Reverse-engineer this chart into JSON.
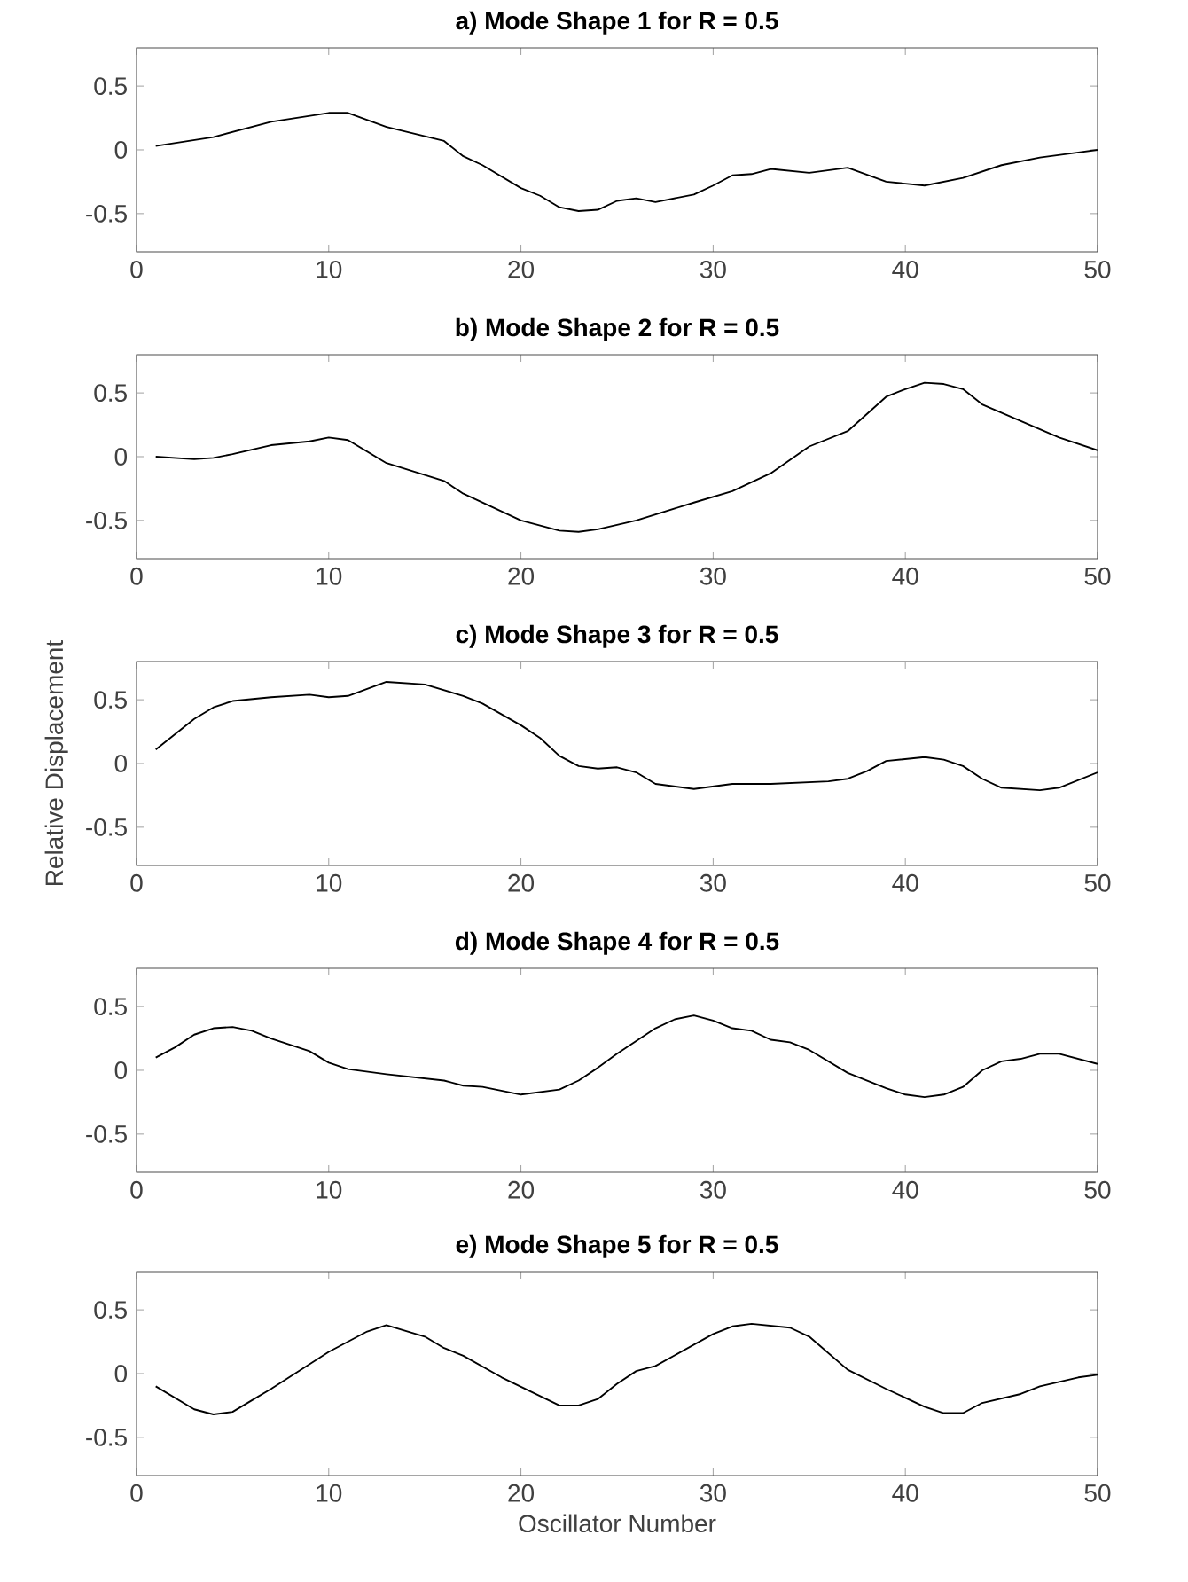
{
  "chart_data": [
    {
      "type": "line",
      "title": "a) Mode Shape 1 for R = 0.5",
      "xlim": [
        0,
        50
      ],
      "ylim": [
        -0.8,
        0.8
      ],
      "xticks": [
        0,
        10,
        20,
        30,
        40,
        50
      ],
      "yticks": [
        -0.5,
        0,
        0.5
      ],
      "x": [
        1,
        4,
        7,
        10,
        11,
        13,
        16,
        17,
        18,
        20,
        21,
        22,
        23,
        24,
        25,
        26,
        27,
        29,
        30,
        31,
        32,
        33,
        35,
        37,
        39,
        41,
        43,
        45,
        47,
        49,
        50
      ],
      "series": [
        {
          "color": "#000000",
          "values": [
            0.03,
            0.1,
            0.22,
            0.29,
            0.29,
            0.18,
            0.07,
            -0.05,
            -0.12,
            -0.3,
            -0.36,
            -0.45,
            -0.48,
            -0.47,
            -0.4,
            -0.38,
            -0.41,
            -0.35,
            -0.28,
            -0.2,
            -0.19,
            -0.15,
            -0.18,
            -0.14,
            -0.25,
            -0.28,
            -0.22,
            -0.12,
            -0.06,
            -0.02,
            0.0
          ]
        }
      ]
    },
    {
      "type": "line",
      "title": "b) Mode Shape 2 for R = 0.5",
      "xlim": [
        0,
        50
      ],
      "ylim": [
        -0.8,
        0.8
      ],
      "xticks": [
        0,
        10,
        20,
        30,
        40,
        50
      ],
      "yticks": [
        -0.5,
        0,
        0.5
      ],
      "x": [
        1,
        3,
        4,
        5,
        7,
        9,
        10,
        11,
        13,
        16,
        17,
        20,
        22,
        23,
        24,
        26,
        29,
        31,
        33,
        35,
        37,
        39,
        40,
        41,
        42,
        43,
        44,
        46,
        48,
        50
      ],
      "series": [
        {
          "color": "#000000",
          "values": [
            0,
            -0.02,
            -0.01,
            0.02,
            0.09,
            0.12,
            0.15,
            0.13,
            -0.05,
            -0.19,
            -0.29,
            -0.5,
            -0.58,
            -0.59,
            -0.57,
            -0.5,
            -0.36,
            -0.27,
            -0.13,
            0.08,
            0.2,
            0.47,
            0.53,
            0.58,
            0.57,
            0.53,
            0.41,
            0.28,
            0.15,
            0.05
          ]
        }
      ]
    },
    {
      "type": "line",
      "title": "c) Mode Shape 3 for R = 0.5",
      "ylabel": "Relative Displacement",
      "xlim": [
        0,
        50
      ],
      "ylim": [
        -0.8,
        0.8
      ],
      "xticks": [
        0,
        10,
        20,
        30,
        40,
        50
      ],
      "yticks": [
        -0.5,
        0,
        0.5
      ],
      "x": [
        1,
        3,
        4,
        5,
        7,
        9,
        10,
        11,
        13,
        15,
        17,
        18,
        20,
        21,
        22,
        23,
        24,
        25,
        26,
        27,
        29,
        31,
        33,
        36,
        37,
        38,
        39,
        41,
        42,
        43,
        44,
        45,
        47,
        48,
        50
      ],
      "series": [
        {
          "color": "#000000",
          "values": [
            0.11,
            0.35,
            0.44,
            0.49,
            0.52,
            0.54,
            0.52,
            0.53,
            0.64,
            0.62,
            0.53,
            0.47,
            0.3,
            0.2,
            0.06,
            -0.02,
            -0.04,
            -0.03,
            -0.07,
            -0.16,
            -0.2,
            -0.16,
            -0.16,
            -0.14,
            -0.12,
            -0.06,
            0.02,
            0.05,
            0.03,
            -0.02,
            -0.12,
            -0.19,
            -0.21,
            -0.19,
            -0.07
          ]
        }
      ]
    },
    {
      "type": "line",
      "title": "d) Mode Shape 4 for R = 0.5",
      "xlim": [
        0,
        50
      ],
      "ylim": [
        -0.8,
        0.8
      ],
      "xticks": [
        0,
        10,
        20,
        30,
        40,
        50
      ],
      "yticks": [
        -0.5,
        0,
        0.5
      ],
      "x": [
        1,
        2,
        3,
        4,
        5,
        6,
        7,
        9,
        10,
        11,
        13,
        16,
        17,
        18,
        20,
        22,
        23,
        24,
        25,
        27,
        28,
        29,
        30,
        31,
        32,
        33,
        34,
        35,
        37,
        39,
        40,
        41,
        42,
        43,
        44,
        45,
        46,
        47,
        48,
        50
      ],
      "series": [
        {
          "color": "#000000",
          "values": [
            0.1,
            0.18,
            0.28,
            0.33,
            0.34,
            0.31,
            0.25,
            0.15,
            0.06,
            0.01,
            -0.03,
            -0.08,
            -0.12,
            -0.13,
            -0.19,
            -0.15,
            -0.08,
            0.02,
            0.13,
            0.33,
            0.4,
            0.43,
            0.39,
            0.33,
            0.31,
            0.24,
            0.22,
            0.16,
            -0.02,
            -0.14,
            -0.19,
            -0.21,
            -0.19,
            -0.13,
            0.0,
            0.07,
            0.09,
            0.13,
            0.13,
            0.05
          ]
        }
      ]
    },
    {
      "type": "line",
      "title": "e) Mode Shape 5 for R = 0.5",
      "xlabel": "Oscillator Number",
      "xlim": [
        0,
        50
      ],
      "ylim": [
        -0.8,
        0.8
      ],
      "xticks": [
        0,
        10,
        20,
        30,
        40,
        50
      ],
      "yticks": [
        -0.5,
        0,
        0.5
      ],
      "x": [
        1,
        3,
        4,
        5,
        6,
        7,
        10,
        12,
        13,
        15,
        16,
        17,
        19,
        22,
        23,
        24,
        25,
        26,
        27,
        30,
        31,
        32,
        34,
        35,
        37,
        39,
        41,
        42,
        43,
        44,
        46,
        47,
        49,
        50
      ],
      "series": [
        {
          "color": "#000000",
          "values": [
            -0.1,
            -0.28,
            -0.32,
            -0.3,
            -0.21,
            -0.12,
            0.17,
            0.33,
            0.38,
            0.29,
            0.2,
            0.14,
            -0.03,
            -0.25,
            -0.25,
            -0.2,
            -0.08,
            0.02,
            0.06,
            0.31,
            0.37,
            0.39,
            0.36,
            0.29,
            0.03,
            -0.12,
            -0.26,
            -0.31,
            -0.31,
            -0.23,
            -0.16,
            -0.1,
            -0.03,
            -0.01
          ]
        }
      ]
    }
  ]
}
